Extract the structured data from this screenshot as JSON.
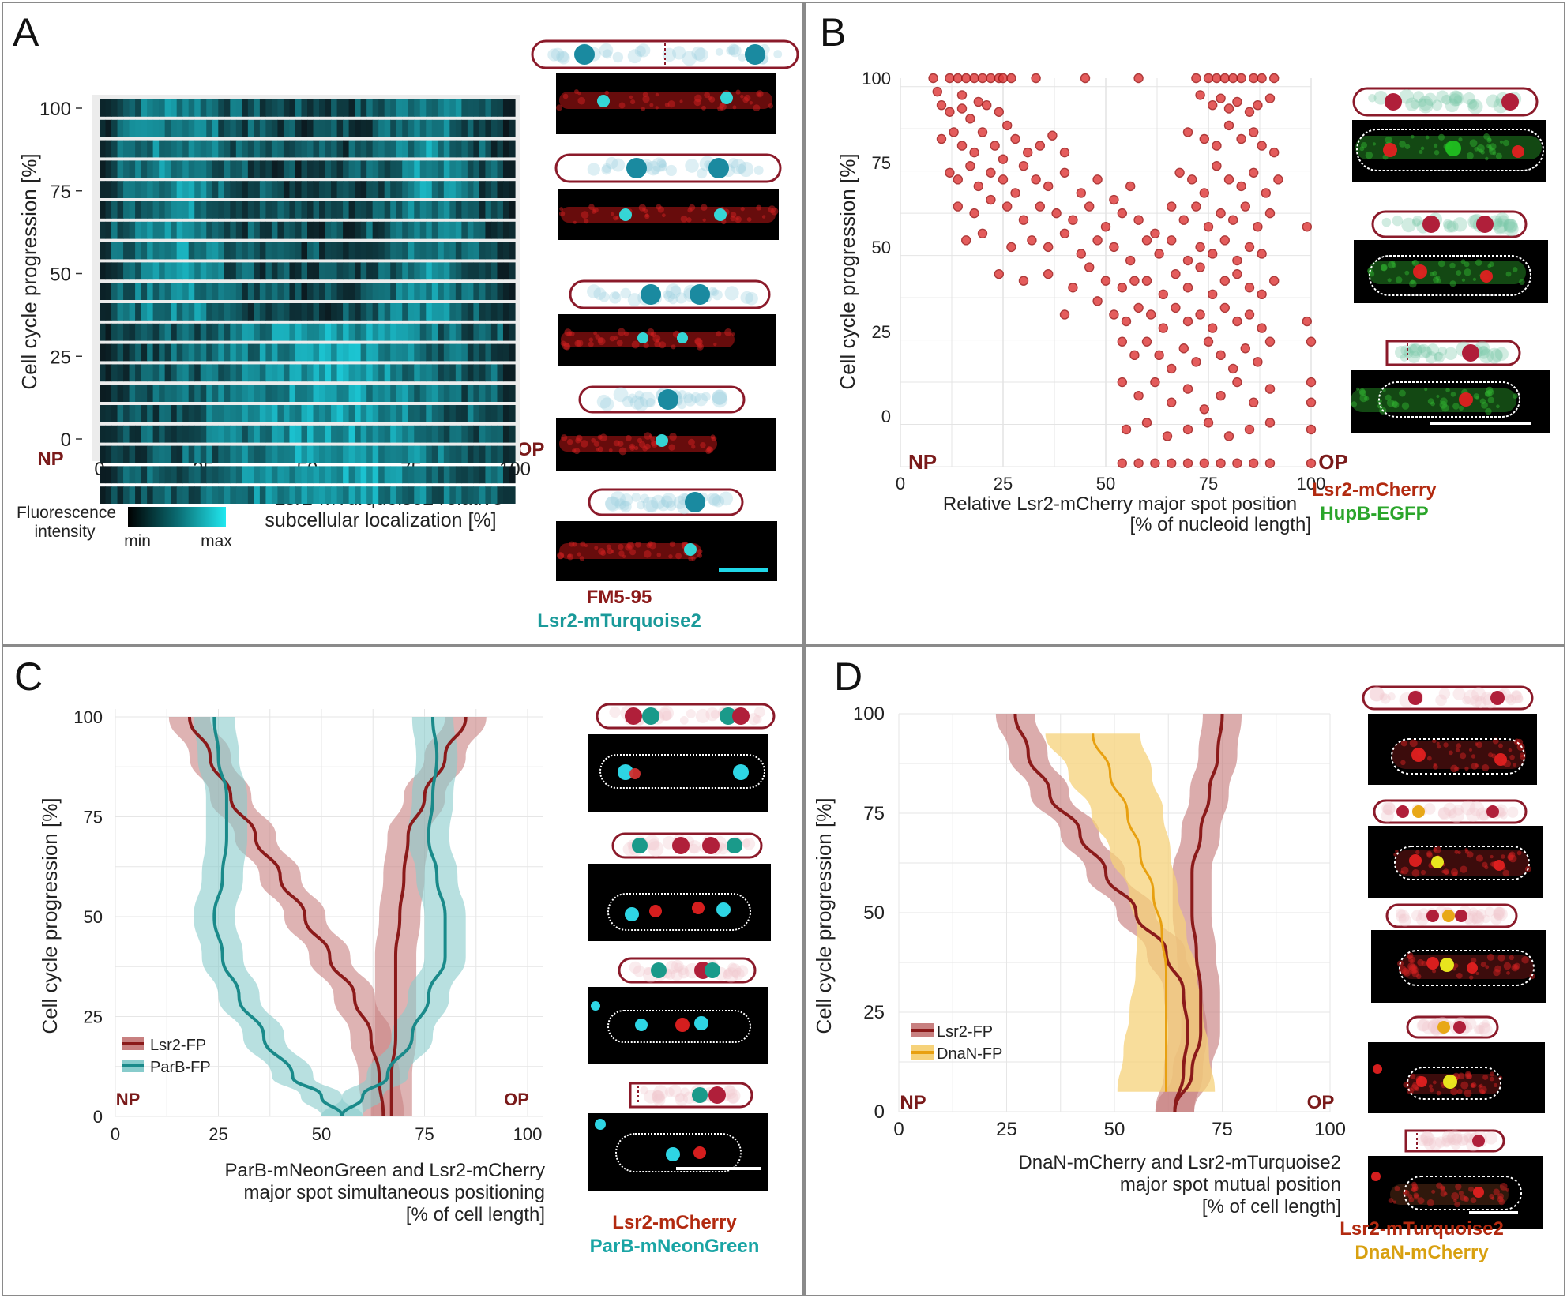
{
  "colors": {
    "red": "#8b1a1a",
    "teal": "#1a9a9a",
    "green": "#2aa52a",
    "orange": "#d08a10",
    "lsr_line": "#8b1a1a",
    "lsr_band": "#c88080",
    "parb_line": "#1a8a8a",
    "parb_band": "#88cccc",
    "dnan_line": "#e8a010",
    "dnan_band": "#f6d27a"
  },
  "panelA": {
    "letter": "A",
    "ylabel": "Cell cycle progression [%]",
    "yticks": [
      "0",
      "25",
      "50",
      "75",
      "100"
    ],
    "xticks": [
      "0",
      "25",
      "50",
      "75",
      "100"
    ],
    "np": "NP",
    "op": "OP",
    "xlabel_lines": [
      "Lsr2-mTurquoise2 relative",
      "subcellular localization [%]"
    ],
    "colorbar_title_lines": [
      "Fluorescence",
      "intensity"
    ],
    "cb_min": "min",
    "cb_max": "max",
    "legend_lines": [
      "FM5-95",
      "Lsr2-mTurquoise2"
    ]
  },
  "panelB": {
    "letter": "B",
    "ylabel": "Cell cycle progression [%]",
    "yticks": [
      "0",
      "25",
      "50",
      "75",
      "100"
    ],
    "xticks": [
      "0",
      "25",
      "50",
      "75",
      "100"
    ],
    "np": "NP",
    "op": "OP",
    "xlabel_lines": [
      "Relative Lsr2-mCherry major spot position",
      "[% of nucleoid length]"
    ],
    "legend_lines": [
      "Lsr2-mCherry",
      "HupB-EGFP"
    ]
  },
  "panelC": {
    "letter": "C",
    "ylabel": "Cell cycle progression [%]",
    "yticks": [
      "0",
      "25",
      "50",
      "75",
      "100"
    ],
    "xticks": [
      "0",
      "25",
      "50",
      "75",
      "100"
    ],
    "np": "NP",
    "op": "OP",
    "series_names": [
      "Lsr2-FP",
      "ParB-FP"
    ],
    "xlabel_lines": [
      "ParB-mNeonGreen and Lsr2-mCherry",
      "major spot simultaneous positioning",
      "[% of cell length]"
    ],
    "legend_lines": [
      "Lsr2-mCherry",
      "ParB-mNeonGreen"
    ]
  },
  "panelD": {
    "letter": "D",
    "ylabel": "Cell cycle progression [%]",
    "yticks": [
      "0",
      "25",
      "50",
      "75",
      "100"
    ],
    "xticks": [
      "0",
      "25",
      "50",
      "75",
      "100"
    ],
    "np": "NP",
    "op": "OP",
    "series_names": [
      "Lsr2-FP",
      "DnaN-FP"
    ],
    "xlabel_lines": [
      "DnaN-mCherry and Lsr2-mTurquoise2",
      "major spot mutual position",
      "[% of cell length]"
    ],
    "legend_lines": [
      "Lsr2-mTurquoise2",
      "DnaN-mCherry"
    ]
  },
  "chart_data": [
    {
      "panel": "A",
      "type": "heatmap",
      "xlabel": "Lsr2-mTurquoise2 relative subcellular localization [%]",
      "ylabel": "Cell cycle progression [%]",
      "xlim": [
        0,
        100
      ],
      "ylim": [
        0,
        100
      ],
      "rows": 20,
      "colorbar": [
        "min",
        "max"
      ]
    },
    {
      "panel": "B",
      "type": "scatter",
      "xlabel": "Relative Lsr2-mCherry major spot position [% of nucleoid length]",
      "ylabel": "Cell cycle progression [%]",
      "xlim": [
        0,
        100
      ],
      "ylim": [
        -15,
        100
      ],
      "points": [
        [
          8,
          100
        ],
        [
          9,
          96
        ],
        [
          12,
          100
        ],
        [
          14,
          100
        ],
        [
          15,
          95
        ],
        [
          16,
          100
        ],
        [
          18,
          100
        ],
        [
          20,
          100
        ],
        [
          22,
          100
        ],
        [
          24,
          100
        ],
        [
          25,
          100
        ],
        [
          27,
          100
        ],
        [
          33,
          100
        ],
        [
          45,
          100
        ],
        [
          58,
          100
        ],
        [
          72,
          100
        ],
        [
          75,
          100
        ],
        [
          77,
          100
        ],
        [
          79,
          100
        ],
        [
          81,
          100
        ],
        [
          83,
          100
        ],
        [
          86,
          100
        ],
        [
          88,
          100
        ],
        [
          91,
          100
        ],
        [
          10,
          92
        ],
        [
          12,
          90
        ],
        [
          15,
          91
        ],
        [
          17,
          88
        ],
        [
          19,
          93
        ],
        [
          21,
          92
        ],
        [
          24,
          90
        ],
        [
          26,
          86
        ],
        [
          73,
          95
        ],
        [
          76,
          92
        ],
        [
          78,
          94
        ],
        [
          80,
          91
        ],
        [
          82,
          93
        ],
        [
          85,
          90
        ],
        [
          87,
          92
        ],
        [
          90,
          94
        ],
        [
          10,
          82
        ],
        [
          13,
          84
        ],
        [
          15,
          80
        ],
        [
          18,
          78
        ],
        [
          20,
          84
        ],
        [
          23,
          80
        ],
        [
          25,
          76
        ],
        [
          28,
          82
        ],
        [
          31,
          78
        ],
        [
          34,
          80
        ],
        [
          37,
          83
        ],
        [
          40,
          78
        ],
        [
          70,
          84
        ],
        [
          74,
          82
        ],
        [
          77,
          80
        ],
        [
          80,
          86
        ],
        [
          83,
          82
        ],
        [
          86,
          84
        ],
        [
          88,
          80
        ],
        [
          91,
          78
        ],
        [
          12,
          72
        ],
        [
          14,
          70
        ],
        [
          17,
          74
        ],
        [
          19,
          68
        ],
        [
          22,
          72
        ],
        [
          25,
          70
        ],
        [
          28,
          66
        ],
        [
          30,
          74
        ],
        [
          33,
          70
        ],
        [
          36,
          68
        ],
        [
          40,
          72
        ],
        [
          44,
          66
        ],
        [
          48,
          70
        ],
        [
          52,
          64
        ],
        [
          56,
          68
        ],
        [
          68,
          72
        ],
        [
          71,
          70
        ],
        [
          74,
          66
        ],
        [
          77,
          74
        ],
        [
          80,
          70
        ],
        [
          83,
          68
        ],
        [
          86,
          72
        ],
        [
          89,
          66
        ],
        [
          92,
          70
        ],
        [
          14,
          62
        ],
        [
          18,
          60
        ],
        [
          22,
          64
        ],
        [
          26,
          62
        ],
        [
          30,
          58
        ],
        [
          34,
          62
        ],
        [
          38,
          60
        ],
        [
          42,
          58
        ],
        [
          46,
          62
        ],
        [
          50,
          56
        ],
        [
          54,
          60
        ],
        [
          58,
          58
        ],
        [
          62,
          54
        ],
        [
          66,
          62
        ],
        [
          69,
          58
        ],
        [
          72,
          62
        ],
        [
          75,
          56
        ],
        [
          78,
          60
        ],
        [
          81,
          58
        ],
        [
          84,
          62
        ],
        [
          87,
          56
        ],
        [
          90,
          60
        ],
        [
          99,
          56
        ],
        [
          16,
          52
        ],
        [
          20,
          54
        ],
        [
          27,
          50
        ],
        [
          32,
          52
        ],
        [
          36,
          50
        ],
        [
          40,
          54
        ],
        [
          44,
          48
        ],
        [
          48,
          52
        ],
        [
          52,
          50
        ],
        [
          56,
          46
        ],
        [
          60,
          52
        ],
        [
          63,
          48
        ],
        [
          66,
          52
        ],
        [
          70,
          46
        ],
        [
          73,
          50
        ],
        [
          76,
          48
        ],
        [
          79,
          52
        ],
        [
          82,
          46
        ],
        [
          85,
          50
        ],
        [
          88,
          48
        ],
        [
          24,
          42
        ],
        [
          30,
          40
        ],
        [
          36,
          42
        ],
        [
          42,
          38
        ],
        [
          46,
          44
        ],
        [
          50,
          40
        ],
        [
          54,
          38
        ],
        [
          57,
          40
        ],
        [
          60,
          40
        ],
        [
          64,
          36
        ],
        [
          67,
          42
        ],
        [
          70,
          38
        ],
        [
          73,
          44
        ],
        [
          76,
          36
        ],
        [
          79,
          40
        ],
        [
          82,
          42
        ],
        [
          85,
          38
        ],
        [
          88,
          36
        ],
        [
          91,
          40
        ],
        [
          40,
          30
        ],
        [
          48,
          34
        ],
        [
          52,
          30
        ],
        [
          55,
          28
        ],
        [
          58,
          32
        ],
        [
          61,
          30
        ],
        [
          64,
          26
        ],
        [
          67,
          32
        ],
        [
          70,
          28
        ],
        [
          73,
          30
        ],
        [
          76,
          26
        ],
        [
          79,
          32
        ],
        [
          82,
          28
        ],
        [
          85,
          30
        ],
        [
          88,
          26
        ],
        [
          99,
          28
        ],
        [
          54,
          22
        ],
        [
          57,
          18
        ],
        [
          60,
          22
        ],
        [
          63,
          18
        ],
        [
          66,
          14
        ],
        [
          69,
          20
        ],
        [
          72,
          16
        ],
        [
          75,
          22
        ],
        [
          78,
          18
        ],
        [
          81,
          14
        ],
        [
          84,
          20
        ],
        [
          87,
          16
        ],
        [
          90,
          22
        ],
        [
          100,
          22
        ],
        [
          54,
          10
        ],
        [
          58,
          6
        ],
        [
          62,
          10
        ],
        [
          66,
          4
        ],
        [
          70,
          8
        ],
        [
          74,
          2
        ],
        [
          78,
          6
        ],
        [
          82,
          10
        ],
        [
          86,
          4
        ],
        [
          90,
          8
        ],
        [
          100,
          10
        ],
        [
          100,
          4
        ],
        [
          55,
          -4
        ],
        [
          60,
          -2
        ],
        [
          65,
          -6
        ],
        [
          70,
          -4
        ],
        [
          75,
          -2
        ],
        [
          80,
          -6
        ],
        [
          85,
          -4
        ],
        [
          90,
          -2
        ],
        [
          100,
          -4
        ],
        [
          54,
          -14
        ],
        [
          58,
          -14
        ],
        [
          62,
          -14
        ],
        [
          66,
          -14
        ],
        [
          70,
          -14
        ],
        [
          74,
          -14
        ],
        [
          78,
          -14
        ],
        [
          82,
          -14
        ],
        [
          86,
          -14
        ],
        [
          90,
          -14
        ],
        [
          100,
          -14
        ]
      ]
    },
    {
      "panel": "C",
      "type": "line",
      "xlabel": "ParB-mNeonGreen and Lsr2-mCherry major spot simultaneous positioning [% of cell length]",
      "ylabel": "Cell cycle progression [%]",
      "xlim": [
        0,
        100
      ],
      "ylim": [
        0,
        100
      ],
      "series": [
        {
          "name": "Lsr2-FP",
          "role": "left",
          "points": [
            [
              65,
              0
            ],
            [
              64,
              10
            ],
            [
              62,
              20
            ],
            [
              58,
              30
            ],
            [
              52,
              40
            ],
            [
              46,
              50
            ],
            [
              40,
              60
            ],
            [
              34,
              70
            ],
            [
              28,
              80
            ],
            [
              23,
              90
            ],
            [
              18,
              100
            ]
          ]
        },
        {
          "name": "Lsr2-FP",
          "role": "right",
          "points": [
            [
              67,
              0
            ],
            [
              67,
              10
            ],
            [
              68,
              20
            ],
            [
              68,
              30
            ],
            [
              68,
              40
            ],
            [
              69,
              50
            ],
            [
              70,
              60
            ],
            [
              71,
              70
            ],
            [
              75,
              80
            ],
            [
              80,
              90
            ],
            [
              85,
              100
            ]
          ]
        },
        {
          "name": "ParB-FP",
          "role": "left",
          "points": [
            [
              55,
              0
            ],
            [
              50,
              5
            ],
            [
              43,
              10
            ],
            [
              36,
              20
            ],
            [
              30,
              30
            ],
            [
              26,
              40
            ],
            [
              24,
              50
            ],
            [
              26,
              60
            ],
            [
              27,
              70
            ],
            [
              27,
              80
            ],
            [
              25,
              90
            ],
            [
              24,
              100
            ]
          ]
        },
        {
          "name": "ParB-FP",
          "role": "right",
          "points": [
            [
              55,
              0
            ],
            [
              60,
              5
            ],
            [
              66,
              10
            ],
            [
              72,
              20
            ],
            [
              76,
              30
            ],
            [
              80,
              40
            ],
            [
              80,
              50
            ],
            [
              78,
              60
            ],
            [
              76,
              70
            ],
            [
              77,
              80
            ],
            [
              78,
              90
            ],
            [
              77,
              100
            ]
          ]
        }
      ]
    },
    {
      "panel": "D",
      "type": "line",
      "xlabel": "DnaN-mCherry and Lsr2-mTurquoise2 major spot mutual position [% of cell length]",
      "ylabel": "Cell cycle progression [%]",
      "xlim": [
        0,
        100
      ],
      "ylim": [
        0,
        100
      ],
      "series": [
        {
          "name": "Lsr2-FP",
          "role": "left",
          "points": [
            [
              64,
              0
            ],
            [
              66,
              10
            ],
            [
              67,
              20
            ],
            [
              66,
              30
            ],
            [
              62,
              40
            ],
            [
              55,
              50
            ],
            [
              48,
              60
            ],
            [
              42,
              70
            ],
            [
              35,
              80
            ],
            [
              30,
              90
            ],
            [
              27,
              100
            ]
          ]
        },
        {
          "name": "Lsr2-FP",
          "role": "right",
          "points": [
            [
              64,
              0
            ],
            [
              68,
              10
            ],
            [
              70,
              20
            ],
            [
              70,
              30
            ],
            [
              69,
              40
            ],
            [
              68,
              50
            ],
            [
              68,
              60
            ],
            [
              70,
              70
            ],
            [
              72,
              80
            ],
            [
              74,
              90
            ],
            [
              75,
              100
            ]
          ]
        },
        {
          "name": "DnaN-FP",
          "points": [
            [
              62,
              5
            ],
            [
              62,
              15
            ],
            [
              62,
              25
            ],
            [
              62,
              35
            ],
            [
              61,
              45
            ],
            [
              59,
              55
            ],
            [
              56,
              65
            ],
            [
              53,
              75
            ],
            [
              49,
              85
            ],
            [
              45,
              95
            ]
          ]
        }
      ]
    }
  ]
}
